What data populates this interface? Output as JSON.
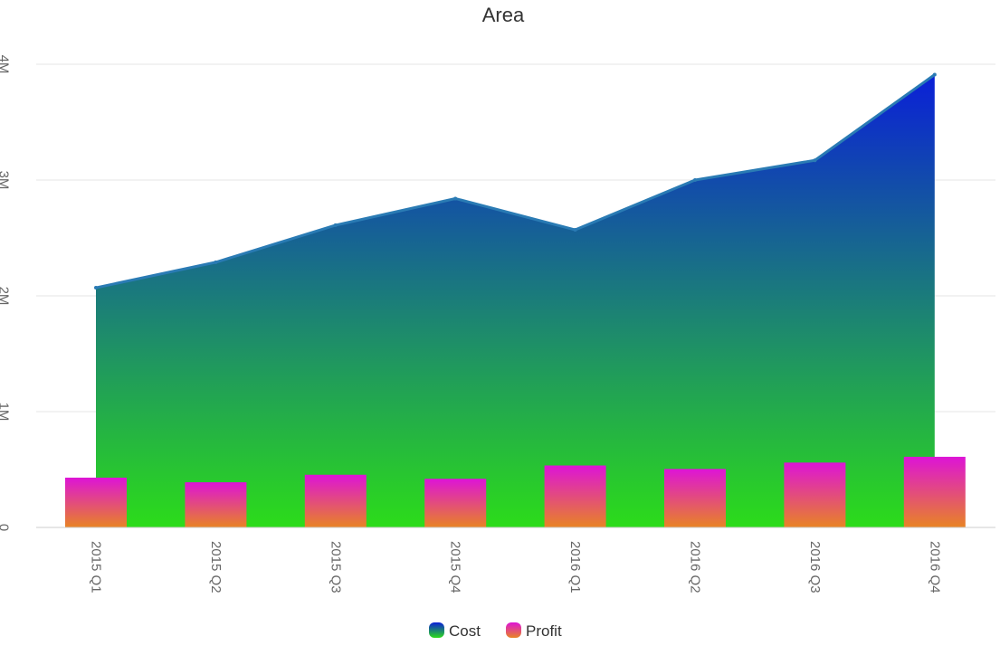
{
  "chart_data": {
    "type": "area",
    "title": "Area",
    "categories": [
      "2015 Q1",
      "2015 Q2",
      "2015 Q3",
      "2015 Q4",
      "2016 Q1",
      "2016 Q2",
      "2016 Q3",
      "2016 Q4"
    ],
    "series": [
      {
        "name": "Cost",
        "type": "area",
        "values": [
          2070000,
          2290000,
          2610000,
          2840000,
          2570000,
          3000000,
          3170000,
          3910000
        ],
        "gradient_colors": [
          "#0a1fd8",
          "#2cdc1a"
        ],
        "line_color": "#2a7bb4"
      },
      {
        "name": "Profit",
        "type": "bar",
        "values": [
          430000,
          390000,
          455000,
          420000,
          535000,
          505000,
          560000,
          610000
        ],
        "gradient_colors": [
          "#dd14d6",
          "#e88424"
        ]
      }
    ],
    "y_ticks": [
      {
        "value": 0,
        "label": "0"
      },
      {
        "value": 1000000,
        "label": "1M"
      },
      {
        "value": 2000000,
        "label": "2M"
      },
      {
        "value": 3000000,
        "label": "3M"
      },
      {
        "value": 4000000,
        "label": "4M"
      }
    ],
    "ylim": [
      0,
      4000000
    ],
    "grid": true,
    "legend_position": "bottom"
  }
}
